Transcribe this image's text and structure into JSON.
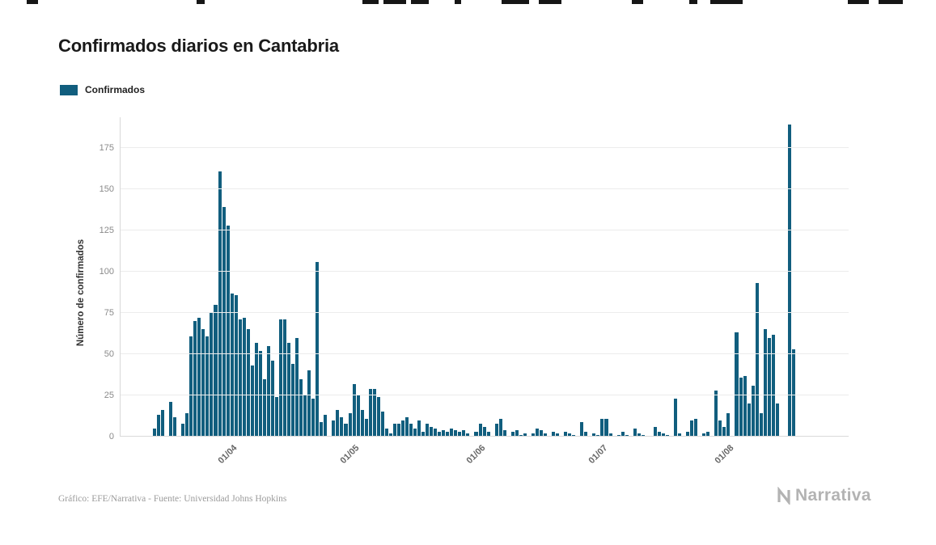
{
  "title": "Confirmados diarios en Cantabria",
  "legend": {
    "label": "Confirmados"
  },
  "footer": {
    "credit": "Gráfico: EFE/Narrativa - Fuente: Universidad Johns Hopkins"
  },
  "logo": {
    "text": "Narrativa"
  },
  "colors": {
    "bar": "#115e7e",
    "grid": "#ececec",
    "axis": "#d9d9d9",
    "ytick": "#8a8a8a",
    "xtick": "#666666",
    "title": "#1a1a1a",
    "ylabel": "#333333",
    "footer": "#9b9b9b",
    "logo": "#b3b3b3"
  },
  "chart_data": {
    "type": "bar",
    "title": "Confirmados diarios en Cantabria",
    "series_name": "Confirmados",
    "xlabel": "",
    "ylabel": "Número de confirmados",
    "ylim": [
      0,
      195
    ],
    "yticks": [
      0,
      25,
      50,
      75,
      100,
      125,
      150,
      175
    ],
    "xticks": [
      "01/04",
      "01/05",
      "01/06",
      "01/07",
      "01/08"
    ],
    "grid": "horizontal",
    "legend_position": "top-left",
    "dates": [
      "13/03",
      "14/03",
      "15/03",
      "16/03",
      "17/03",
      "18/03",
      "19/03",
      "20/03",
      "21/03",
      "22/03",
      "23/03",
      "24/03",
      "25/03",
      "26/03",
      "27/03",
      "28/03",
      "29/03",
      "30/03",
      "31/03",
      "01/04",
      "02/04",
      "03/04",
      "04/04",
      "05/04",
      "06/04",
      "07/04",
      "08/04",
      "09/04",
      "10/04",
      "11/04",
      "12/04",
      "13/04",
      "14/04",
      "15/04",
      "16/04",
      "17/04",
      "18/04",
      "19/04",
      "20/04",
      "21/04",
      "22/04",
      "23/04",
      "24/04",
      "25/04",
      "26/04",
      "27/04",
      "28/04",
      "29/04",
      "30/04",
      "01/05",
      "02/05",
      "03/05",
      "04/05",
      "05/05",
      "06/05",
      "07/05",
      "08/05",
      "09/05",
      "10/05",
      "11/05",
      "12/05",
      "13/05",
      "14/05",
      "15/05",
      "16/05",
      "17/05",
      "18/05",
      "19/05",
      "20/05",
      "21/05",
      "22/05",
      "23/05",
      "24/05",
      "25/05",
      "26/05",
      "27/05",
      "28/05",
      "29/05",
      "30/05",
      "31/05",
      "01/06",
      "02/06",
      "03/06",
      "04/06",
      "05/06",
      "06/06",
      "07/06",
      "08/06",
      "09/06",
      "10/06",
      "11/06",
      "12/06",
      "13/06",
      "14/06",
      "15/06",
      "16/06",
      "17/06",
      "18/06",
      "19/06",
      "20/06",
      "21/06",
      "22/06",
      "23/06",
      "24/06",
      "25/06",
      "26/06",
      "27/06",
      "28/06",
      "29/06",
      "30/06",
      "01/07",
      "02/07",
      "03/07",
      "04/07",
      "05/07",
      "06/07",
      "07/07",
      "08/07",
      "09/07",
      "10/07",
      "11/07",
      "12/07",
      "13/07",
      "14/07",
      "15/07",
      "16/07",
      "17/07",
      "18/07",
      "19/07",
      "20/07",
      "21/07",
      "22/07",
      "23/07",
      "24/07",
      "25/07",
      "26/07",
      "27/07",
      "28/07",
      "29/07",
      "30/07",
      "31/07",
      "01/08",
      "02/08",
      "03/08",
      "04/08",
      "05/08",
      "06/08",
      "07/08",
      "08/08",
      "09/08",
      "10/08",
      "11/08",
      "12/08",
      "13/08",
      "14/08",
      "15/08",
      "16/08",
      "17/08"
    ],
    "values": [
      5,
      13,
      16,
      0,
      21,
      12,
      0,
      8,
      14,
      61,
      70,
      72,
      65,
      61,
      75,
      80,
      161,
      139,
      128,
      87,
      86,
      71,
      72,
      65,
      43,
      57,
      52,
      35,
      55,
      46,
      24,
      71,
      71,
      57,
      44,
      60,
      35,
      25,
      40,
      23,
      106,
      9,
      13,
      0,
      10,
      16,
      12,
      8,
      14,
      32,
      25,
      16,
      11,
      29,
      29,
      24,
      15,
      5,
      2,
      8,
      8,
      10,
      12,
      8,
      5,
      10,
      3,
      8,
      6,
      5,
      3,
      4,
      3,
      5,
      4,
      3,
      4,
      2,
      0,
      3,
      8,
      6,
      3,
      0,
      8,
      11,
      4,
      0,
      3,
      4,
      1,
      2,
      0,
      2,
      5,
      4,
      2,
      0,
      3,
      2,
      0,
      3,
      2,
      1,
      0,
      9,
      3,
      0,
      2,
      1,
      11,
      11,
      2,
      0,
      1,
      3,
      1,
      0,
      5,
      2,
      1,
      0,
      0,
      6,
      3,
      2,
      1,
      0,
      23,
      2,
      0,
      3,
      10,
      11,
      0,
      2,
      3,
      0,
      28,
      10,
      6,
      14,
      0,
      63,
      36,
      37,
      20,
      31,
      93,
      14,
      65,
      60,
      62,
      20,
      0,
      0,
      189,
      53
    ]
  }
}
